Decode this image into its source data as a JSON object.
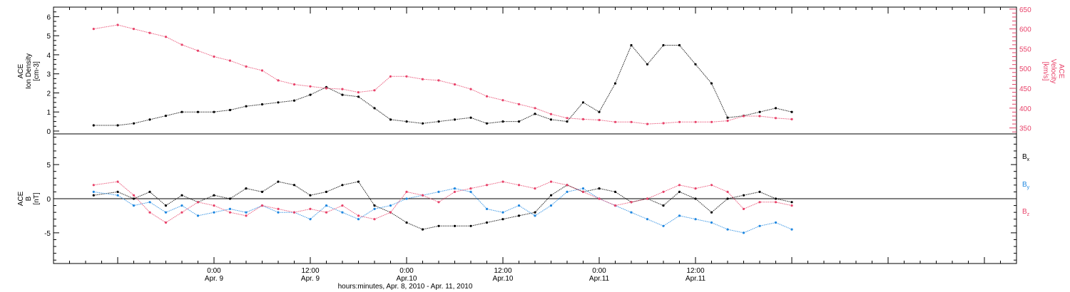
{
  "chart_data": [
    {
      "type": "scatter",
      "panel": "top",
      "ylabel_left": [
        "ACE",
        "Ion Density",
        "[cm-3]"
      ],
      "ylabel_right": [
        "ACE",
        "Velocity",
        "[km/s]"
      ],
      "yticks_left": [
        0,
        1,
        2,
        3,
        4,
        5,
        6
      ],
      "ylim_left": [
        -0.15,
        6.5
      ],
      "yticks_right": [
        350,
        400,
        450,
        500,
        550,
        600,
        650
      ],
      "ylim_right": [
        335,
        655
      ],
      "series": [
        {
          "axis": "left",
          "color": "#000000",
          "points": [
            [
              -15,
              0.3
            ],
            [
              -12,
              0.3
            ],
            [
              -10,
              0.4
            ],
            [
              -8,
              0.6
            ],
            [
              -6,
              0.8
            ],
            [
              -4,
              1.0
            ],
            [
              -2,
              1.0
            ],
            [
              0,
              1.0
            ],
            [
              2,
              1.1
            ],
            [
              4,
              1.3
            ],
            [
              6,
              1.4
            ],
            [
              8,
              1.5
            ],
            [
              10,
              1.6
            ],
            [
              12,
              1.9
            ],
            [
              14,
              2.3
            ],
            [
              16,
              1.9
            ],
            [
              18,
              1.8
            ],
            [
              20,
              1.2
            ],
            [
              22,
              0.6
            ],
            [
              24,
              0.5
            ],
            [
              26,
              0.4
            ],
            [
              28,
              0.5
            ],
            [
              30,
              0.6
            ],
            [
              32,
              0.7
            ],
            [
              34,
              0.4
            ],
            [
              36,
              0.5
            ],
            [
              38,
              0.5
            ],
            [
              40,
              0.9
            ],
            [
              42,
              0.6
            ],
            [
              44,
              0.5
            ],
            [
              46,
              1.5
            ],
            [
              48,
              1.0
            ],
            [
              50,
              2.5
            ],
            [
              52,
              4.5
            ],
            [
              54,
              3.5
            ],
            [
              56,
              4.5
            ],
            [
              58,
              4.5
            ],
            [
              60,
              3.5
            ],
            [
              62,
              2.5
            ],
            [
              64,
              0.7
            ],
            [
              66,
              0.8
            ],
            [
              68,
              1.0
            ],
            [
              70,
              1.2
            ],
            [
              72,
              1.0
            ]
          ]
        },
        {
          "axis": "right",
          "color": "#e8436a",
          "points": [
            [
              -15,
              600
            ],
            [
              -12,
              610
            ],
            [
              -10,
              600
            ],
            [
              -8,
              590
            ],
            [
              -6,
              580
            ],
            [
              -4,
              560
            ],
            [
              -2,
              545
            ],
            [
              0,
              530
            ],
            [
              2,
              520
            ],
            [
              4,
              505
            ],
            [
              6,
              495
            ],
            [
              8,
              470
            ],
            [
              10,
              460
            ],
            [
              12,
              455
            ],
            [
              14,
              450
            ],
            [
              16,
              448
            ],
            [
              18,
              440
            ],
            [
              20,
              445
            ],
            [
              22,
              480
            ],
            [
              24,
              480
            ],
            [
              26,
              473
            ],
            [
              28,
              470
            ],
            [
              30,
              460
            ],
            [
              32,
              448
            ],
            [
              34,
              430
            ],
            [
              36,
              420
            ],
            [
              38,
              410
            ],
            [
              40,
              400
            ],
            [
              42,
              385
            ],
            [
              44,
              375
            ],
            [
              46,
              372
            ],
            [
              48,
              370
            ],
            [
              50,
              365
            ],
            [
              52,
              365
            ],
            [
              54,
              360
            ],
            [
              56,
              362
            ],
            [
              58,
              365
            ],
            [
              60,
              365
            ],
            [
              62,
              365
            ],
            [
              64,
              368
            ],
            [
              66,
              380
            ],
            [
              68,
              380
            ],
            [
              70,
              375
            ],
            [
              72,
              372
            ]
          ]
        }
      ]
    },
    {
      "type": "scatter",
      "panel": "bottom",
      "ylabel_left": [
        "ACE",
        "B",
        "[nT]"
      ],
      "yticks": [
        -5,
        0,
        5
      ],
      "ylim": [
        -9.5,
        9.5
      ],
      "zero_line": true,
      "series": [
        {
          "name": "Bx",
          "color": "#000000",
          "points": [
            [
              -15,
              0.5
            ],
            [
              -12,
              1
            ],
            [
              -10,
              0
            ],
            [
              -8,
              1
            ],
            [
              -6,
              -1
            ],
            [
              -4,
              0.5
            ],
            [
              -2,
              -0.5
            ],
            [
              0,
              0.5
            ],
            [
              2,
              0
            ],
            [
              4,
              1.5
            ],
            [
              6,
              1
            ],
            [
              8,
              2.5
            ],
            [
              10,
              2
            ],
            [
              12,
              0.5
            ],
            [
              14,
              1
            ],
            [
              16,
              2
            ],
            [
              18,
              2.5
            ],
            [
              20,
              -1
            ],
            [
              22,
              -2
            ],
            [
              24,
              -3.5
            ],
            [
              26,
              -4.5
            ],
            [
              28,
              -4
            ],
            [
              30,
              -4
            ],
            [
              32,
              -4
            ],
            [
              34,
              -3.5
            ],
            [
              36,
              -3
            ],
            [
              38,
              -2.5
            ],
            [
              40,
              -2
            ],
            [
              42,
              0.5
            ],
            [
              44,
              2
            ],
            [
              46,
              1
            ],
            [
              48,
              1.5
            ],
            [
              50,
              1
            ],
            [
              52,
              -0.5
            ],
            [
              54,
              0
            ],
            [
              56,
              -1
            ],
            [
              58,
              1
            ],
            [
              60,
              0
            ],
            [
              62,
              -2
            ],
            [
              64,
              0
            ],
            [
              66,
              0.5
            ],
            [
              68,
              1
            ],
            [
              70,
              0
            ],
            [
              72,
              -0.5
            ]
          ]
        },
        {
          "name": "By",
          "color": "#1f87e0",
          "points": [
            [
              -15,
              1
            ],
            [
              -12,
              0.5
            ],
            [
              -10,
              -1
            ],
            [
              -8,
              -0.5
            ],
            [
              -6,
              -2
            ],
            [
              -4,
              -1
            ],
            [
              -2,
              -2.5
            ],
            [
              0,
              -2
            ],
            [
              2,
              -1.5
            ],
            [
              4,
              -2
            ],
            [
              6,
              -1
            ],
            [
              8,
              -2
            ],
            [
              10,
              -2
            ],
            [
              12,
              -3
            ],
            [
              14,
              -1
            ],
            [
              16,
              -2
            ],
            [
              18,
              -3
            ],
            [
              20,
              -1.5
            ],
            [
              22,
              -1
            ],
            [
              24,
              0
            ],
            [
              26,
              0.5
            ],
            [
              28,
              1
            ],
            [
              30,
              1.5
            ],
            [
              32,
              1
            ],
            [
              34,
              -1.5
            ],
            [
              36,
              -2
            ],
            [
              38,
              -1
            ],
            [
              40,
              -2.5
            ],
            [
              42,
              -1
            ],
            [
              44,
              1
            ],
            [
              46,
              1.5
            ],
            [
              48,
              0
            ],
            [
              50,
              -1
            ],
            [
              52,
              -2
            ],
            [
              54,
              -3
            ],
            [
              56,
              -4
            ],
            [
              58,
              -2.5
            ],
            [
              60,
              -3
            ],
            [
              62,
              -3.5
            ],
            [
              64,
              -4.5
            ],
            [
              66,
              -5
            ],
            [
              68,
              -4
            ],
            [
              70,
              -3.5
            ],
            [
              72,
              -4.5
            ]
          ]
        },
        {
          "name": "Bz",
          "color": "#e8436a",
          "points": [
            [
              -15,
              2
            ],
            [
              -12,
              2.5
            ],
            [
              -10,
              0.5
            ],
            [
              -8,
              -2
            ],
            [
              -6,
              -3.5
            ],
            [
              -4,
              -2
            ],
            [
              -2,
              -0.5
            ],
            [
              0,
              -1
            ],
            [
              2,
              -2
            ],
            [
              4,
              -2.5
            ],
            [
              6,
              -1
            ],
            [
              8,
              -1.5
            ],
            [
              10,
              -2
            ],
            [
              12,
              -1.5
            ],
            [
              14,
              -2
            ],
            [
              16,
              -1
            ],
            [
              18,
              -2.5
            ],
            [
              20,
              -3
            ],
            [
              22,
              -2
            ],
            [
              24,
              1
            ],
            [
              26,
              0.5
            ],
            [
              28,
              -0.5
            ],
            [
              30,
              1
            ],
            [
              32,
              1.5
            ],
            [
              34,
              2
            ],
            [
              36,
              2.5
            ],
            [
              38,
              2
            ],
            [
              40,
              1.5
            ],
            [
              42,
              2.5
            ],
            [
              44,
              2
            ],
            [
              46,
              1
            ],
            [
              48,
              0
            ],
            [
              50,
              -1
            ],
            [
              52,
              -0.5
            ],
            [
              54,
              0
            ],
            [
              56,
              1
            ],
            [
              58,
              2
            ],
            [
              60,
              1.5
            ],
            [
              62,
              2
            ],
            [
              64,
              1
            ],
            [
              66,
              -1.5
            ],
            [
              68,
              -0.5
            ],
            [
              70,
              -0.5
            ],
            [
              72,
              -1
            ]
          ]
        }
      ],
      "legend": [
        "Bx",
        "By",
        "Bz"
      ],
      "legend_placement": "right"
    }
  ],
  "x_axis": {
    "unit": "hours since 2010-04-09 00:00 UT",
    "xlim": [
      -20,
      100
    ],
    "ticks": [
      {
        "x": 0,
        "line1": "0:00",
        "line2": "Apr. 9"
      },
      {
        "x": 12,
        "line1": "12:00",
        "line2": "Apr. 9"
      },
      {
        "x": 24,
        "line1": "0:00",
        "line2": "Apr.10"
      },
      {
        "x": 36,
        "line1": "12:00",
        "line2": "Apr.10"
      },
      {
        "x": 48,
        "line1": "0:00",
        "line2": "Apr.11"
      },
      {
        "x": 60,
        "line1": "12:00",
        "line2": "Apr.11"
      }
    ],
    "title": "hours:minutes, Apr.  8, 2010 - Apr. 11, 2010"
  },
  "legend": {
    "bx": {
      "main": "B",
      "sub": "x",
      "color": "#000000"
    },
    "by": {
      "main": "B",
      "sub": "y",
      "color": "#1f87e0"
    },
    "bz": {
      "main": "B",
      "sub": "z",
      "color": "#e8436a"
    }
  },
  "colors": {
    "black": "#000000",
    "pink": "#e8436a",
    "blue": "#1f87e0"
  }
}
